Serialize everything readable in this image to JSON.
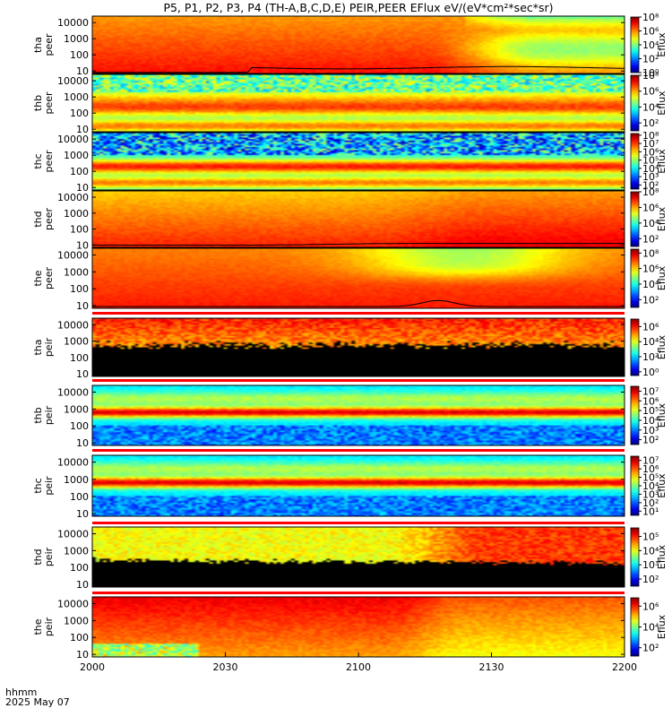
{
  "chart_data": {
    "type": "heatmap",
    "title": "P5, P1, P2, P3, P4 (TH-A,B,C,D,E) PEIR,PEER EFlux eV/(eV*cm²*sec*sr)",
    "x_label_line1": "hhmm",
    "x_label_line2": "2025 May 07",
    "x_ticks": [
      "2000",
      "2030",
      "2100",
      "2130",
      "2200"
    ],
    "x_range": [
      "20:00",
      "22:00"
    ],
    "y_ticks": [
      "10",
      "100",
      "1000",
      "10000"
    ],
    "y_scale": "log",
    "y_range": [
      7,
      25000
    ],
    "colorbar_label": "Eflux",
    "panels": [
      {
        "probe": "tha",
        "species": "peer",
        "pattern": "tha_peer",
        "cbar_ticks": [
          "10⁸",
          "10⁶",
          "10⁴",
          "10²",
          "10⁰"
        ],
        "cbar_range": [
          0,
          8
        ],
        "line": true
      },
      {
        "probe": "thb",
        "species": "peer",
        "pattern": "bands",
        "cbar_ticks": [
          "10⁸",
          "10⁶",
          "10⁴",
          "10²"
        ],
        "cbar_range": [
          1,
          8
        ],
        "line": false
      },
      {
        "probe": "thc",
        "species": "peer",
        "pattern": "bands_noisy",
        "cbar_ticks": [
          "10⁸",
          "10⁷",
          "10⁶",
          "10⁵",
          "10⁴",
          "10³",
          "10²"
        ],
        "cbar_range": [
          1.5,
          8.2
        ],
        "line": false
      },
      {
        "probe": "thd",
        "species": "peer",
        "pattern": "thd_peer",
        "cbar_ticks": [
          "10⁸",
          "10⁶",
          "10⁴",
          "10²"
        ],
        "cbar_range": [
          1,
          8
        ],
        "line": true
      },
      {
        "probe": "the",
        "species": "peer",
        "pattern": "the_peer",
        "cbar_ticks": [
          "10⁸",
          "10⁶",
          "10⁴",
          "10²"
        ],
        "cbar_range": [
          1,
          8.5
        ],
        "line": true
      },
      {
        "probe": "tha",
        "species": "peir",
        "pattern": "tha_peir",
        "cbar_ticks": [
          "10⁶",
          "10⁴",
          "10²",
          "10⁰"
        ],
        "cbar_range": [
          -0.5,
          7
        ],
        "line": false
      },
      {
        "probe": "thb",
        "species": "peir",
        "pattern": "ion_bands",
        "cbar_ticks": [
          "10⁷",
          "10⁶",
          "10⁵",
          "10⁴",
          "10³",
          "10²"
        ],
        "cbar_range": [
          1.5,
          7.5
        ],
        "line": false
      },
      {
        "probe": "thc",
        "species": "peir",
        "pattern": "ion_bands",
        "cbar_ticks": [
          "10⁷",
          "10⁶",
          "10⁵",
          "10⁴",
          "10³",
          "10²",
          "10¹"
        ],
        "cbar_range": [
          0.5,
          7.5
        ],
        "line": false
      },
      {
        "probe": "thd",
        "species": "peir",
        "pattern": "thd_peir",
        "cbar_ticks": [
          "10⁵",
          "10⁴",
          "10³",
          "10²"
        ],
        "cbar_range": [
          1.5,
          5.6
        ],
        "line": false
      },
      {
        "probe": "the",
        "species": "peir",
        "pattern": "the_peir",
        "cbar_ticks": [
          "10⁶",
          "10⁴",
          "10²"
        ],
        "cbar_range": [
          1.2,
          6.8
        ],
        "line": false
      }
    ]
  }
}
